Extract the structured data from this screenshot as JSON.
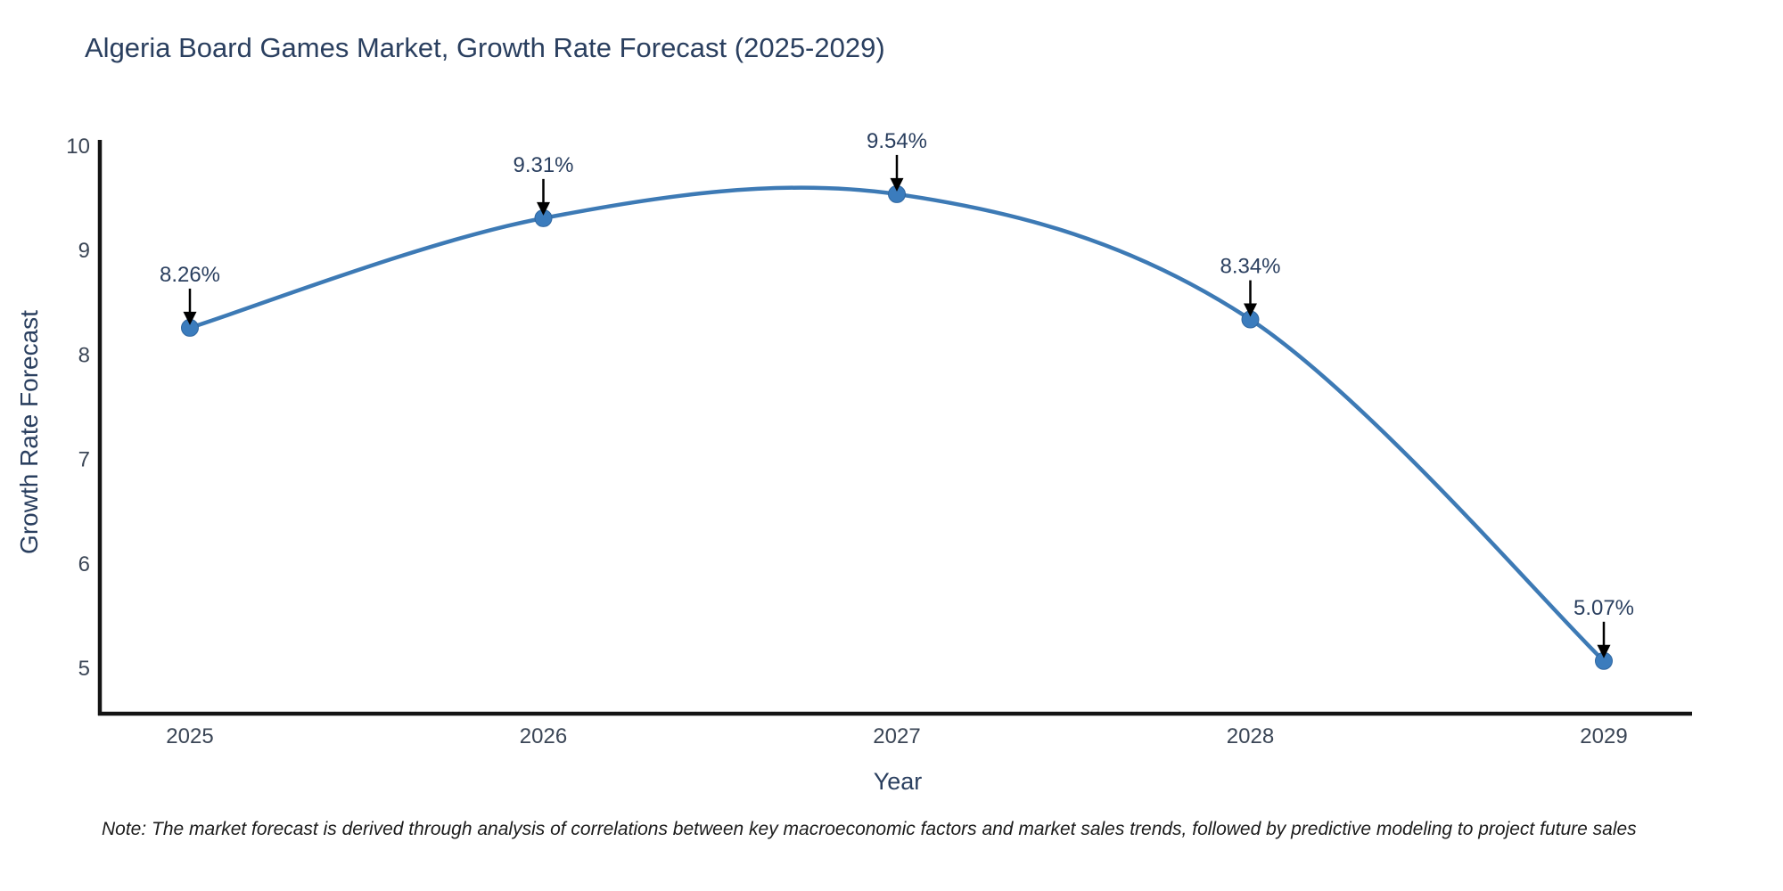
{
  "chart_data": {
    "type": "line",
    "title": "Algeria Board Games Market, Growth Rate Forecast (2025-2029)",
    "x": [
      2025,
      2026,
      2027,
      2028,
      2029
    ],
    "series": [
      {
        "name": "Growth Rate Forecast",
        "values": [
          8.26,
          9.31,
          9.54,
          8.34,
          5.07
        ]
      }
    ],
    "point_labels": [
      "8.26%",
      "9.31%",
      "9.54%",
      "8.34%",
      "5.07%"
    ],
    "xlabel": "Year",
    "ylabel": "Growth Rate Forecast",
    "yticks": [
      5,
      6,
      7,
      8,
      9,
      10
    ],
    "ylim": [
      4.55,
      10.06
    ],
    "line_shape": "spline",
    "grid": false,
    "legend": false,
    "colors": {
      "line": "#3d7ab5",
      "marker": "#3b7cbd",
      "marker_edge": "#2f66a0",
      "axis_line": "#141414",
      "chart_text": "#2a3f5f",
      "tick_text": "#3b4656",
      "annotation_text": "#2a3f5f",
      "arrow": "#000000",
      "background": "#ffffff"
    }
  },
  "footnote": {
    "text": "Note: The market forecast is derived through analysis of correlations between key macroeconomic factors and market sales trends, followed by predictive modeling to project future sales"
  }
}
